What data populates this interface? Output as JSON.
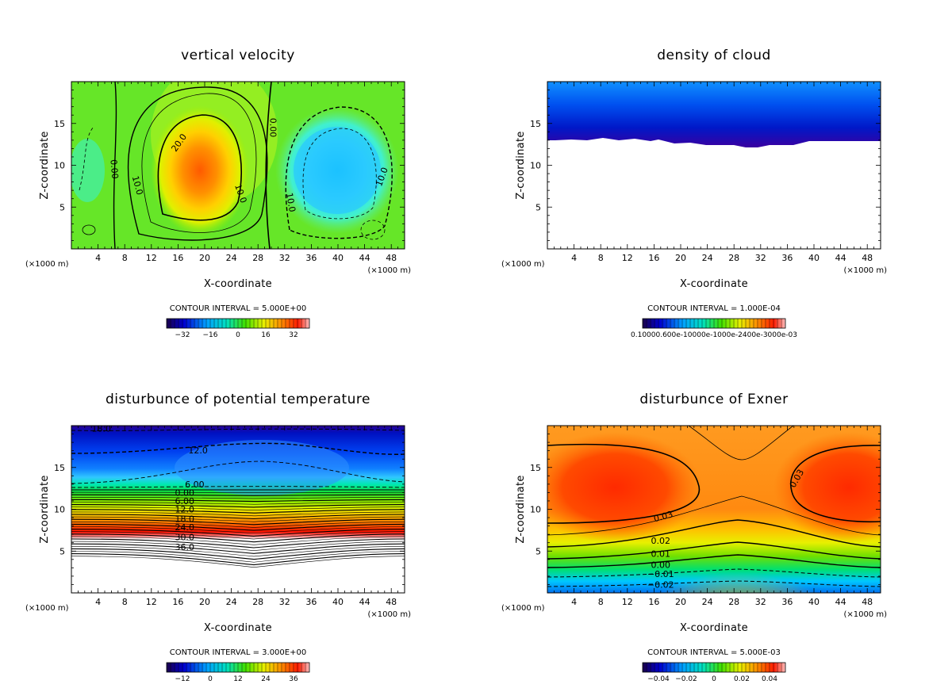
{
  "chart_data": [
    {
      "type": "heatmap",
      "title": "vertical velocity",
      "xlabel": "X-coordinate",
      "ylabel": "Z-coordinate",
      "x_unit": "(×1000 m)",
      "xlim": [
        0,
        50
      ],
      "ylim": [
        0,
        20
      ],
      "x_ticks": [
        "4",
        "8",
        "12",
        "16",
        "20",
        "24",
        "28",
        "32",
        "36",
        "40",
        "44",
        "48"
      ],
      "y_ticks": [
        "5",
        "10",
        "15"
      ],
      "contour_interval": "CONTOUR INTERVAL = 5.000E+00",
      "colorbar_ticks": [
        "−32",
        "−16",
        "0",
        "16",
        "32"
      ],
      "contour_labels": [
        {
          "text": "20.0",
          "x": 16.5,
          "y": 12.5,
          "rot": -55
        },
        {
          "text": "10.0",
          "x": 9.5,
          "y": 7.5,
          "rot": 75
        },
        {
          "text": "0.00",
          "x": 6.0,
          "y": 9.5,
          "rot": 85
        },
        {
          "text": "10.0",
          "x": 25.0,
          "y": 6.5,
          "rot": 70
        },
        {
          "text": "0.00",
          "x": 29.8,
          "y": 14.5,
          "rot": 90
        },
        {
          "text": "10.0",
          "x": 32.5,
          "y": 5.5,
          "rot": 80
        },
        {
          "text": "10.0",
          "x": 47.0,
          "y": 8.5,
          "rot": -70
        }
      ]
    },
    {
      "type": "heatmap",
      "title": "density of cloud",
      "xlabel": "X-coordinate",
      "ylabel": "Z-coordinate",
      "x_unit": "(×1000 m)",
      "xlim": [
        0,
        50
      ],
      "ylim": [
        0,
        20
      ],
      "x_ticks": [
        "4",
        "8",
        "12",
        "16",
        "20",
        "24",
        "28",
        "32",
        "36",
        "40",
        "44",
        "48"
      ],
      "y_ticks": [
        "5",
        "10",
        "15"
      ],
      "contour_interval": "CONTOUR INTERVAL = 1.000E-04",
      "colorbar_label": "0.10000.600e-10000e-1000e-2400e-3000e-03",
      "contour_labels": []
    },
    {
      "type": "heatmap",
      "title": "disturbunce of potential temperature",
      "xlabel": "X-coordinate",
      "ylabel": "Z-coordinate",
      "x_unit": "(×1000 m)",
      "xlim": [
        0,
        50
      ],
      "ylim": [
        0,
        20
      ],
      "x_ticks": [
        "4",
        "8",
        "12",
        "16",
        "20",
        "24",
        "28",
        "32",
        "36",
        "40",
        "44",
        "48"
      ],
      "y_ticks": [
        "5",
        "10",
        "15"
      ],
      "contour_interval": "CONTOUR INTERVAL = 3.000E+00",
      "colorbar_ticks": [
        "−12",
        "0",
        "12",
        "24",
        "36"
      ],
      "contour_labels": [
        {
          "text": "18.0",
          "x": 4.5,
          "y": 19.3,
          "rot": 0
        },
        {
          "text": "12.0",
          "x": 19.0,
          "y": 16.7,
          "rot": 0
        },
        {
          "text": "6.00",
          "x": 18.5,
          "y": 12.6,
          "rot": 0
        },
        {
          "text": "0.00",
          "x": 17.0,
          "y": 11.6,
          "rot": 0
        },
        {
          "text": "6.00",
          "x": 17.0,
          "y": 10.6,
          "rot": 0
        },
        {
          "text": "12.0",
          "x": 17.0,
          "y": 9.6,
          "rot": 0
        },
        {
          "text": "18.0",
          "x": 17.0,
          "y": 8.5,
          "rot": 0
        },
        {
          "text": "24.0",
          "x": 17.0,
          "y": 7.5,
          "rot": 0
        },
        {
          "text": "30.0",
          "x": 17.0,
          "y": 6.3,
          "rot": 0
        },
        {
          "text": "36.0",
          "x": 17.0,
          "y": 5.1,
          "rot": 0
        }
      ]
    },
    {
      "type": "heatmap",
      "title": "disturbunce of Exner",
      "xlabel": "X-coordinate",
      "ylabel": "Z-coordinate",
      "x_unit": "(×1000 m)",
      "xlim": [
        0,
        50
      ],
      "ylim": [
        0,
        20
      ],
      "x_ticks": [
        "4",
        "8",
        "12",
        "16",
        "20",
        "24",
        "28",
        "32",
        "36",
        "40",
        "44",
        "48"
      ],
      "y_ticks": [
        "5",
        "10",
        "15"
      ],
      "contour_interval": "CONTOUR INTERVAL = 5.000E-03",
      "colorbar_ticks": [
        "−0.04",
        "−0.02",
        "0",
        "0.02",
        "0.04"
      ],
      "contour_labels": [
        {
          "text": "0.03",
          "x": 17.5,
          "y": 8.8,
          "rot": -15
        },
        {
          "text": "0.03",
          "x": 37.8,
          "y": 13.5,
          "rot": -60
        },
        {
          "text": "0.02",
          "x": 17.0,
          "y": 5.9,
          "rot": 0
        },
        {
          "text": "0.01",
          "x": 17.0,
          "y": 4.3,
          "rot": 0
        },
        {
          "text": "0.00",
          "x": 17.0,
          "y": 3.0,
          "rot": 0
        },
        {
          "text": "−0.01",
          "x": 17.0,
          "y": 1.9,
          "rot": 0
        },
        {
          "text": "−0.02",
          "x": 17.0,
          "y": 0.6,
          "rot": 0
        }
      ]
    }
  ]
}
